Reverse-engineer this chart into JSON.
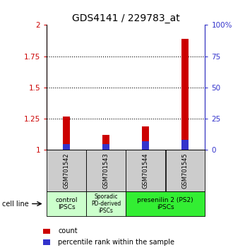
{
  "title": "GDS4141 / 229783_at",
  "samples": [
    "GSM701542",
    "GSM701543",
    "GSM701544",
    "GSM701545"
  ],
  "count_values": [
    1.27,
    1.12,
    1.19,
    1.89
  ],
  "percentile_values": [
    5,
    5,
    7,
    8
  ],
  "ylim_left": [
    1,
    2
  ],
  "ylim_right": [
    0,
    100
  ],
  "yticks_left": [
    1,
    1.25,
    1.5,
    1.75,
    2
  ],
  "yticks_right": [
    0,
    25,
    50,
    75,
    100
  ],
  "ytick_labels_left": [
    "1",
    "1.25",
    "1.5",
    "1.75",
    "2"
  ],
  "ytick_labels_right": [
    "0",
    "25",
    "50",
    "75",
    "100%"
  ],
  "bar_color_red": "#cc0000",
  "bar_color_blue": "#3333cc",
  "bar_width": 0.18,
  "groups": [
    {
      "label": "control\nIPSCs",
      "samples": [
        0
      ],
      "color": "#ccffcc"
    },
    {
      "label": "Sporadic\nPD-derived\niPSCs",
      "samples": [
        1
      ],
      "color": "#ccffcc"
    },
    {
      "label": "presenilin 2 (PS2)\niPSCs",
      "samples": [
        2,
        3
      ],
      "color": "#33ee33"
    }
  ],
  "cell_line_label": "cell line",
  "legend_count": "count",
  "legend_percentile": "percentile rank within the sample",
  "title_fontsize": 10,
  "tick_label_color_left": "#cc0000",
  "tick_label_color_right": "#3333cc",
  "sample_box_color": "#cccccc",
  "dotted_yvals": [
    1.25,
    1.5,
    1.75
  ]
}
